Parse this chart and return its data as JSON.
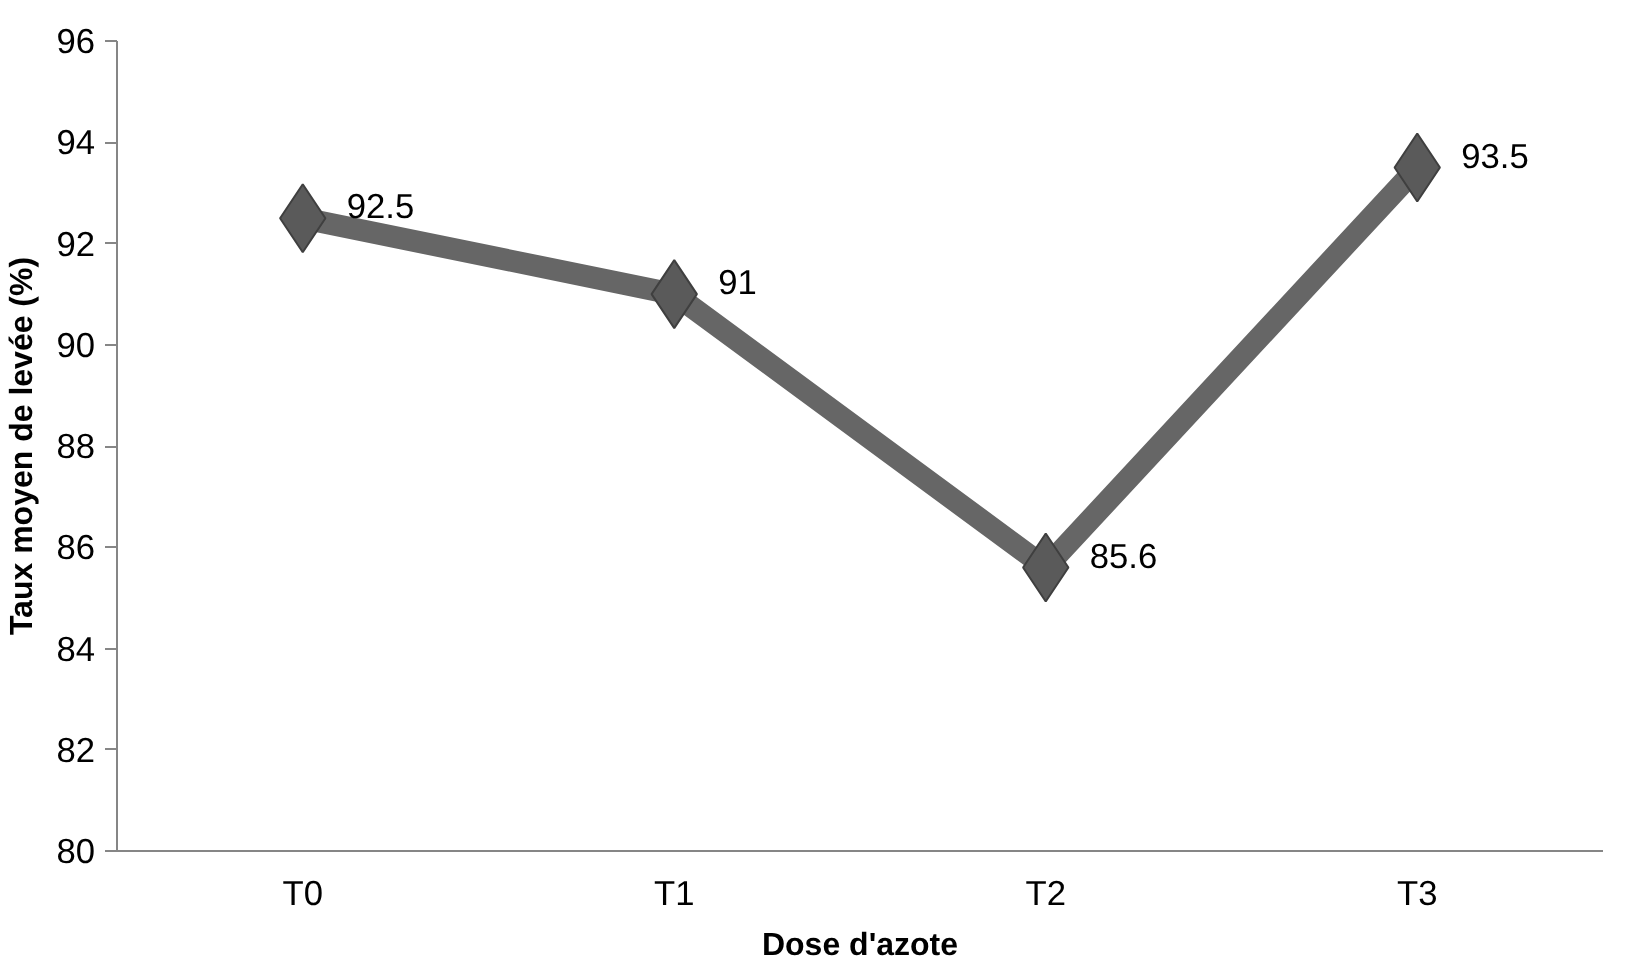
{
  "chart_data": {
    "type": "line",
    "xlabel": "Dose d'azote",
    "ylabel": "Taux moyen de levée (%)",
    "categories": [
      "T0",
      "T1",
      "T2",
      "T3"
    ],
    "series": [
      {
        "color": "#666666",
        "values": [
          92.5,
          91,
          85.6,
          93.5
        ]
      }
    ],
    "ylim": [
      80,
      96
    ],
    "yticks": [
      80,
      82,
      84,
      86,
      88,
      90,
      92,
      94,
      96
    ],
    "grid": false,
    "marker": "diamond",
    "line_style": "solid",
    "data_labels": true
  }
}
